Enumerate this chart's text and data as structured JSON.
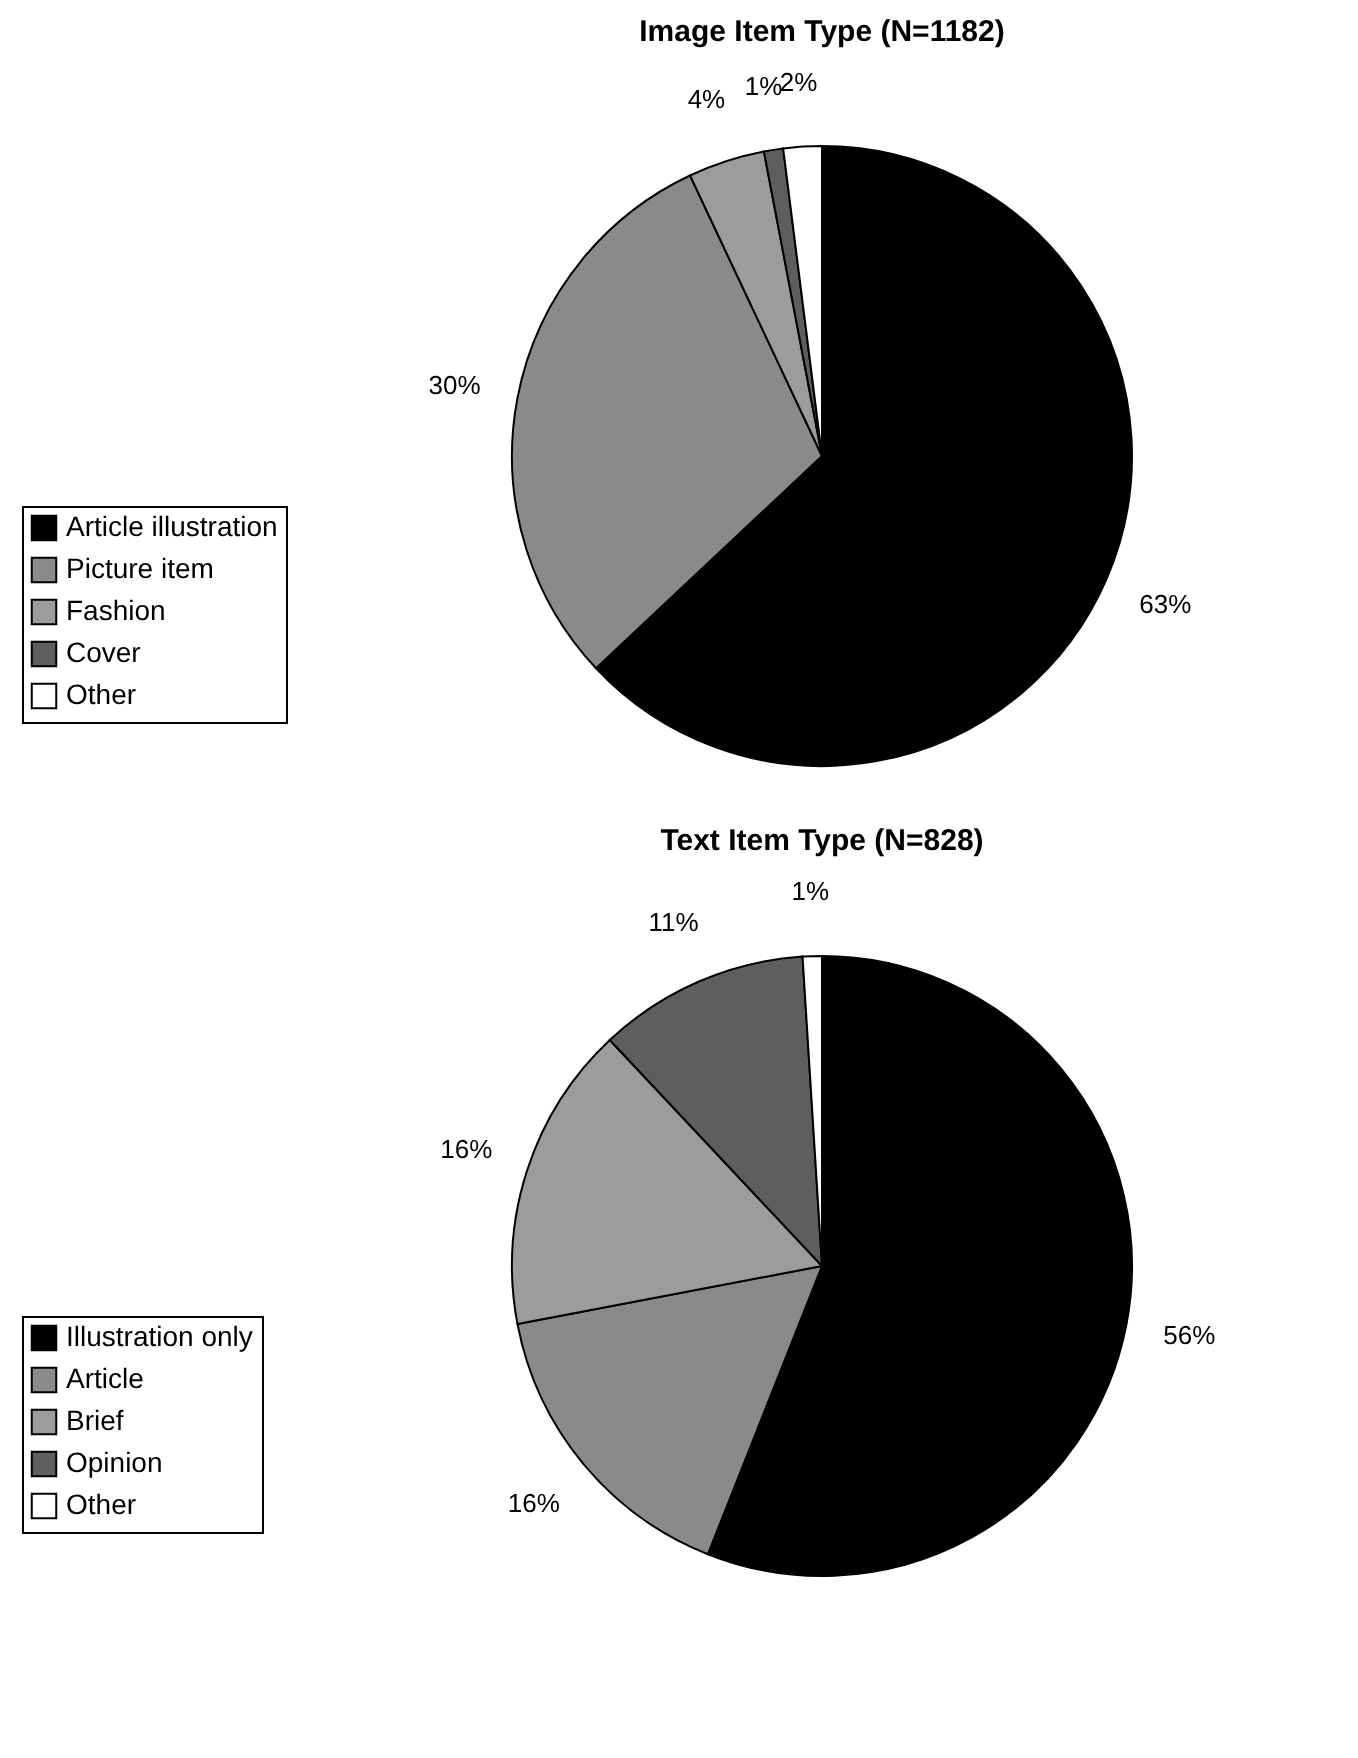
{
  "chart_data": [
    {
      "type": "pie",
      "title": "Image Item Type (N=1182)",
      "categories": [
        "Article illustration",
        "Picture item",
        "Fashion",
        "Cover",
        "Other"
      ],
      "values": [
        63,
        30,
        4,
        1,
        2
      ],
      "colors": [
        "#000000",
        "#8a8a8a",
        "#9c9c9c",
        "#5e5e5e",
        "#ffffff"
      ],
      "value_labels": [
        "63%",
        "30%",
        "4%",
        "1%",
        "2%"
      ],
      "legend": "left"
    },
    {
      "type": "pie",
      "title": "Text Item Type (N=828)",
      "categories": [
        "Illustration only",
        "Article",
        "Brief",
        "Opinion",
        "Other"
      ],
      "values": [
        56,
        16,
        16,
        11,
        1
      ],
      "colors": [
        "#000000",
        "#8a8a8a",
        "#9c9c9c",
        "#5e5e5e",
        "#ffffff"
      ],
      "value_labels": [
        "56%",
        "16%",
        "16%",
        "11%",
        "1%"
      ],
      "legend": "left"
    }
  ]
}
